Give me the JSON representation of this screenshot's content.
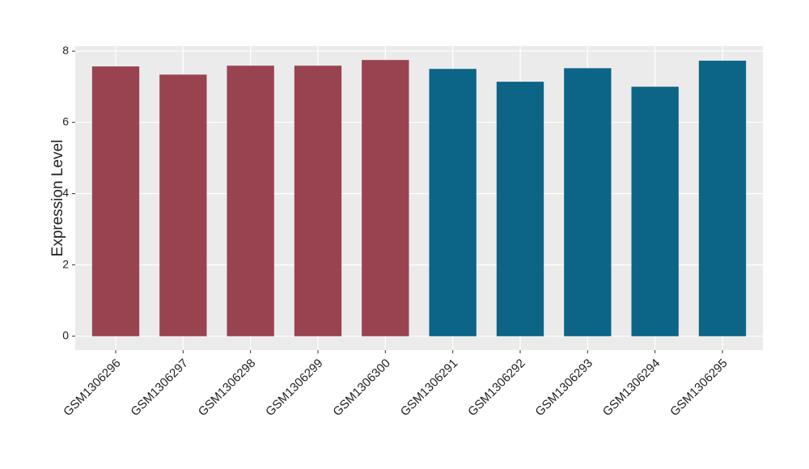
{
  "chart_data": {
    "type": "bar",
    "y_label": "Expression Level",
    "categories": [
      "GSM1306296",
      "GSM1306297",
      "GSM1306298",
      "GSM1306299",
      "GSM1306300",
      "GSM1306291",
      "GSM1306292",
      "GSM1306293",
      "GSM1306294",
      "GSM1306295"
    ],
    "values": [
      7.57,
      7.34,
      7.59,
      7.59,
      7.75,
      7.5,
      7.14,
      7.52,
      7.0,
      7.73
    ],
    "colors": [
      "#9a4350",
      "#9a4350",
      "#9a4350",
      "#9a4350",
      "#9a4350",
      "#0c6587",
      "#0c6587",
      "#0c6587",
      "#0c6587",
      "#0c6587"
    ],
    "ylim": [
      -0.39,
      8.14
    ],
    "yticks": [
      0,
      2,
      4,
      6,
      8
    ],
    "grid": true
  }
}
